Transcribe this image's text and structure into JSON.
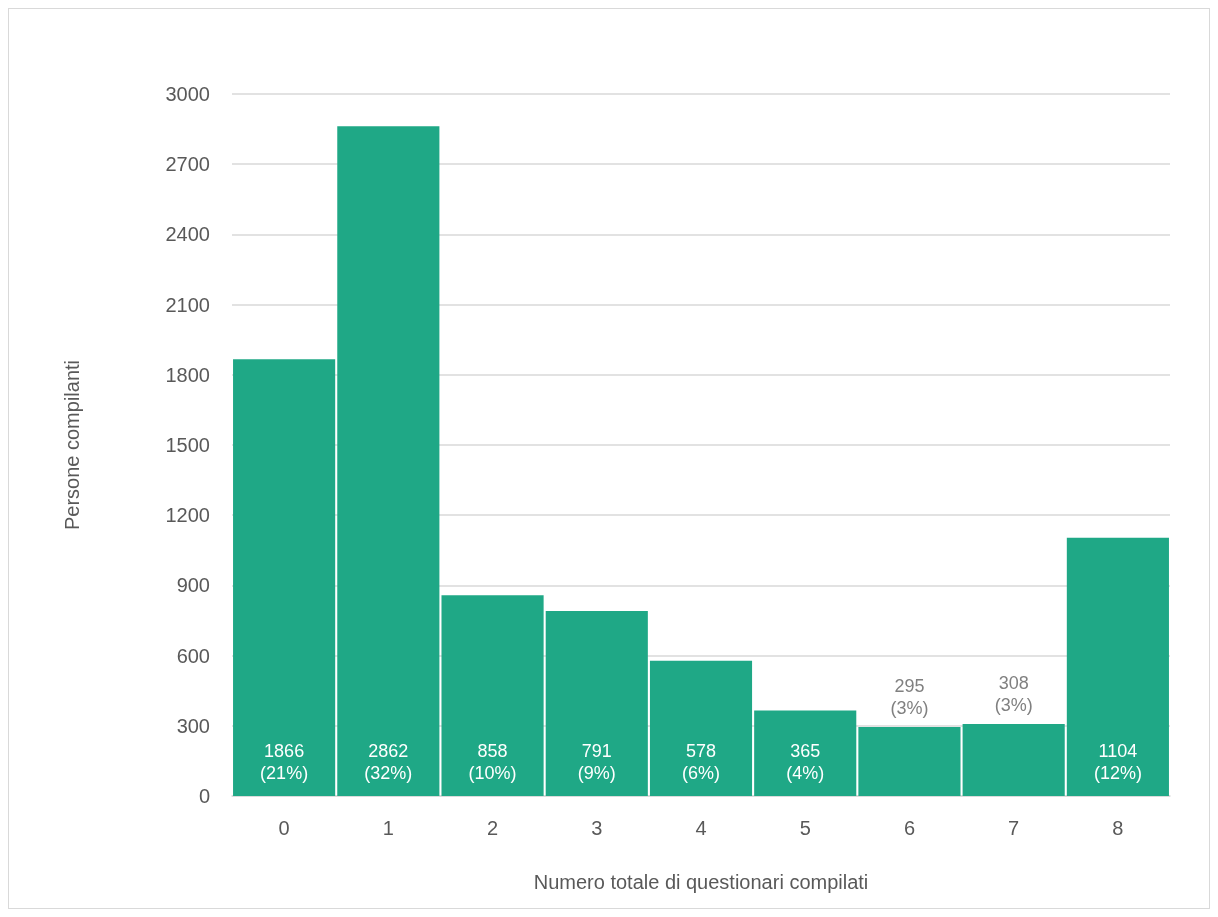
{
  "chart_data": {
    "type": "bar",
    "xlabel": "Numero totale di questionari compilati",
    "ylabel": "Persone compilanti",
    "categories": [
      "0",
      "1",
      "2",
      "3",
      "4",
      "5",
      "6",
      "7",
      "8"
    ],
    "values": [
      1866,
      2862,
      858,
      791,
      578,
      365,
      295,
      308,
      1104
    ],
    "color": "#1fa886",
    "value_labels": [
      "1866\n(21%)",
      "2862\n(32%)",
      "858\n(10%)",
      "791\n(9%)",
      "578\n(6%)",
      "365\n(4%)",
      "295\n(3%)",
      "308\n(3%)",
      "1104\n(12%)"
    ],
    "ylim": [
      0,
      3000
    ],
    "yticks": [
      0,
      300,
      600,
      900,
      1200,
      1500,
      1800,
      2100,
      2400,
      2700,
      3000
    ],
    "grid": "y"
  }
}
